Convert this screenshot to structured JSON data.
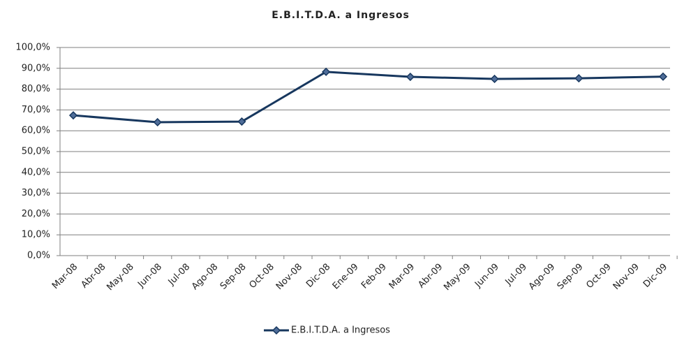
{
  "chart_data": {
    "type": "line",
    "title": "E.B.I.T.D.A. a Ingresos",
    "categories": [
      "Mar-08",
      "Abr-08",
      "May-08",
      "Jun-08",
      "Jul-08",
      "Ago-08",
      "Sep-08",
      "Oct-08",
      "Nov-08",
      "Dic-08",
      "Ene-09",
      "Feb-09",
      "Mar-09",
      "Abr-09",
      "May-09",
      "Jun-09",
      "Jul-09",
      "Ago-09",
      "Sep-09",
      "Oct-09",
      "Nov-09",
      "Dic-09"
    ],
    "series": [
      {
        "name": "E.B.I.T.D.A. a Ingresos",
        "color": "#17375e",
        "x": [
          "Mar-08",
          "Jun-08",
          "Sep-08",
          "Dic-08",
          "Mar-09",
          "Jun-09",
          "Sep-09",
          "Dic-09"
        ],
        "values": [
          67.4,
          64.1,
          64.4,
          88.3,
          85.9,
          84.9,
          85.2,
          86.0
        ]
      }
    ],
    "ylim": [
      0,
      100
    ],
    "yticks": [
      {
        "value": 0,
        "label": "0,0%"
      },
      {
        "value": 10,
        "label": "10,0%"
      },
      {
        "value": 20,
        "label": "20,0%"
      },
      {
        "value": 30,
        "label": "30,0%"
      },
      {
        "value": 40,
        "label": "40,0%"
      },
      {
        "value": 50,
        "label": "50,0%"
      },
      {
        "value": 60,
        "label": "60,0%"
      },
      {
        "value": 70,
        "label": "70,0%"
      },
      {
        "value": 80,
        "label": "80,0%"
      },
      {
        "value": 90,
        "label": "90,0%"
      },
      {
        "value": 100,
        "label": "100,0%"
      }
    ],
    "grid": true,
    "legend": "bottom"
  }
}
